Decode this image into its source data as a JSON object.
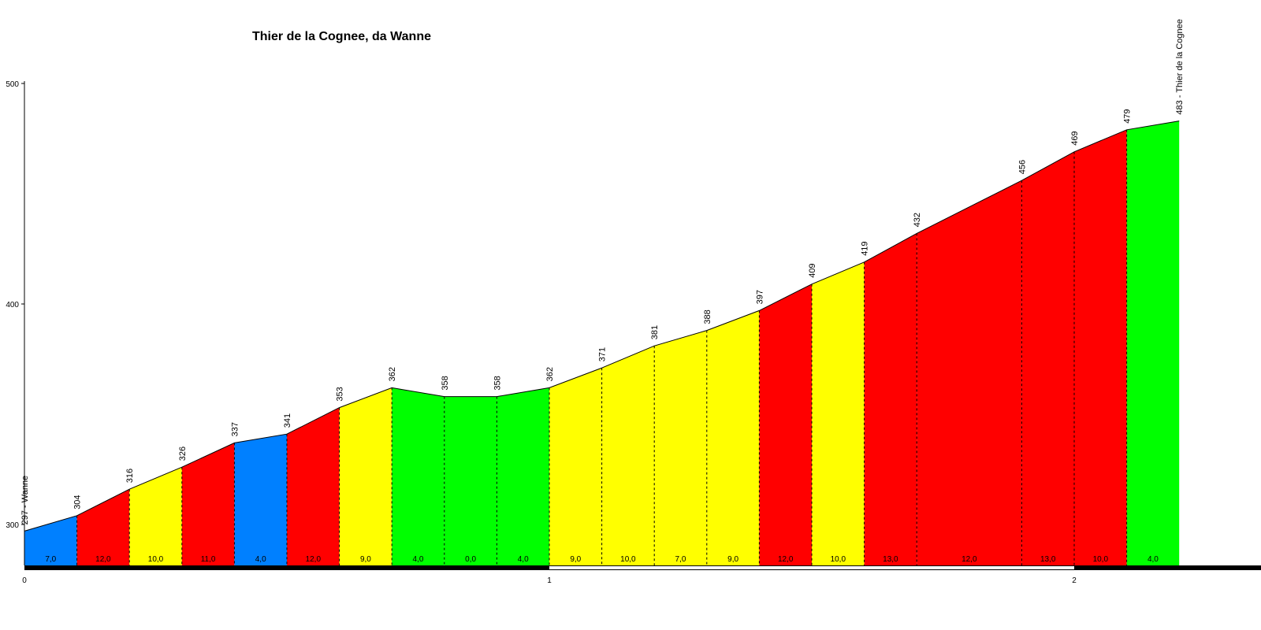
{
  "chart_data": {
    "type": "area",
    "title": "Thier de la Cognee, da Wanne",
    "xlabel": "",
    "ylabel": "",
    "xlim": [
      0,
      2.35
    ],
    "ylim": [
      278,
      500
    ],
    "x_ticks": [
      "0",
      "1",
      "2"
    ],
    "y_ticks": [
      "300",
      "400",
      "500"
    ],
    "grid": false,
    "colors": {
      "blue": "#0080ff",
      "red": "#ff0000",
      "yellow": "#ffff00",
      "green": "#00ff00"
    },
    "points": [
      {
        "x": 0.0,
        "y": 297,
        "label": "297 - Wanne"
      },
      {
        "x": 0.1,
        "y": 304,
        "label": "304"
      },
      {
        "x": 0.2,
        "y": 316,
        "label": "316"
      },
      {
        "x": 0.3,
        "y": 326,
        "label": "326"
      },
      {
        "x": 0.4,
        "y": 337,
        "label": "337"
      },
      {
        "x": 0.5,
        "y": 341,
        "label": "341"
      },
      {
        "x": 0.6,
        "y": 353,
        "label": "353"
      },
      {
        "x": 0.7,
        "y": 362,
        "label": "362"
      },
      {
        "x": 0.8,
        "y": 358,
        "label": "358"
      },
      {
        "x": 0.9,
        "y": 358,
        "label": "358"
      },
      {
        "x": 1.0,
        "y": 362,
        "label": "362"
      },
      {
        "x": 1.1,
        "y": 371,
        "label": "371"
      },
      {
        "x": 1.2,
        "y": 381,
        "label": "381"
      },
      {
        "x": 1.3,
        "y": 388,
        "label": "388"
      },
      {
        "x": 1.4,
        "y": 397,
        "label": "397"
      },
      {
        "x": 1.5,
        "y": 409,
        "label": "409"
      },
      {
        "x": 1.6,
        "y": 419,
        "label": "419"
      },
      {
        "x": 1.7,
        "y": 432,
        "label": "432"
      },
      {
        "x": 1.8,
        "y": 444,
        "label": ""
      },
      {
        "x": 1.9,
        "y": 456,
        "label": "456"
      },
      {
        "x": 2.0,
        "y": 469,
        "label": "469"
      },
      {
        "x": 2.1,
        "y": 479,
        "label": "479"
      },
      {
        "x": 2.2,
        "y": 483,
        "label": "483 - Thier de la Cognee"
      }
    ],
    "segments": [
      {
        "gradient": "7,0",
        "color": "blue"
      },
      {
        "gradient": "12,0",
        "color": "red"
      },
      {
        "gradient": "10,0",
        "color": "yellow"
      },
      {
        "gradient": "11,0",
        "color": "red"
      },
      {
        "gradient": "4,0",
        "color": "blue"
      },
      {
        "gradient": "12,0",
        "color": "red"
      },
      {
        "gradient": "9,0",
        "color": "yellow"
      },
      {
        "gradient": "4,0",
        "color": "green"
      },
      {
        "gradient": "0,0",
        "color": "green"
      },
      {
        "gradient": "4,0",
        "color": "green"
      },
      {
        "gradient": "9,0",
        "color": "yellow"
      },
      {
        "gradient": "10,0",
        "color": "yellow"
      },
      {
        "gradient": "7,0",
        "color": "yellow"
      },
      {
        "gradient": "9,0",
        "color": "yellow"
      },
      {
        "gradient": "12,0",
        "color": "red"
      },
      {
        "gradient": "10,0",
        "color": "yellow"
      },
      {
        "gradient": "13,0",
        "color": "red"
      },
      {
        "gradient": "12,0",
        "color": "red",
        "span": 2
      },
      {
        "gradient": "13,0",
        "color": "red"
      },
      {
        "gradient": "10,0",
        "color": "red"
      },
      {
        "gradient": "4,0",
        "color": "green"
      }
    ]
  }
}
